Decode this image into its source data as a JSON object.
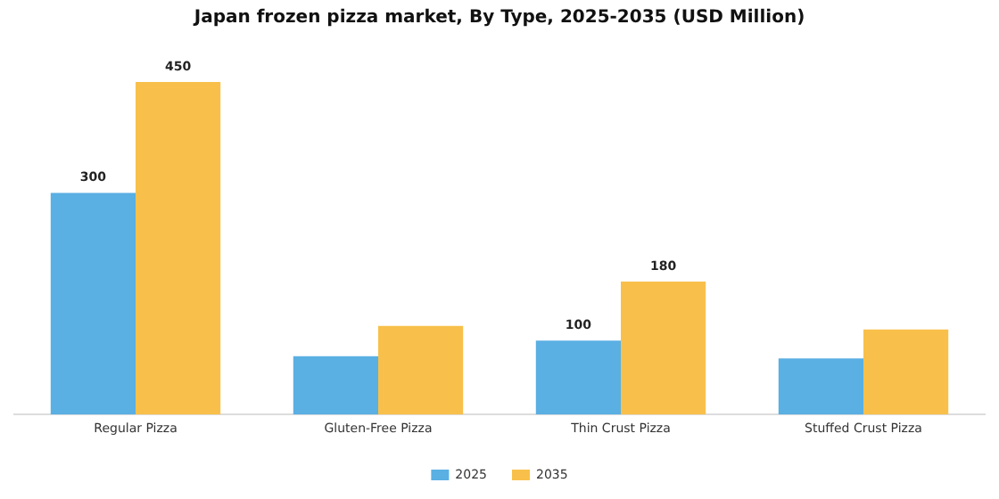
{
  "chart_data": {
    "type": "bar",
    "title": "Japan frozen pizza market, By Type, 2025-2035 (USD Million)",
    "categories": [
      "Regular Pizza",
      "Gluten-Free Pizza",
      "Thin Crust Pizza",
      "Stuffed Crust Pizza"
    ],
    "series": [
      {
        "name": "2025",
        "color": "#5aafe3",
        "values": [
          300,
          79,
          100,
          76
        ],
        "value_labels": [
          "300",
          null,
          "100",
          null
        ]
      },
      {
        "name": "2035",
        "color": "#f8c04a",
        "values": [
          450,
          120,
          180,
          115
        ],
        "value_labels": [
          "450",
          null,
          "180",
          null
        ]
      }
    ],
    "legend": "bottom",
    "grid": false
  }
}
